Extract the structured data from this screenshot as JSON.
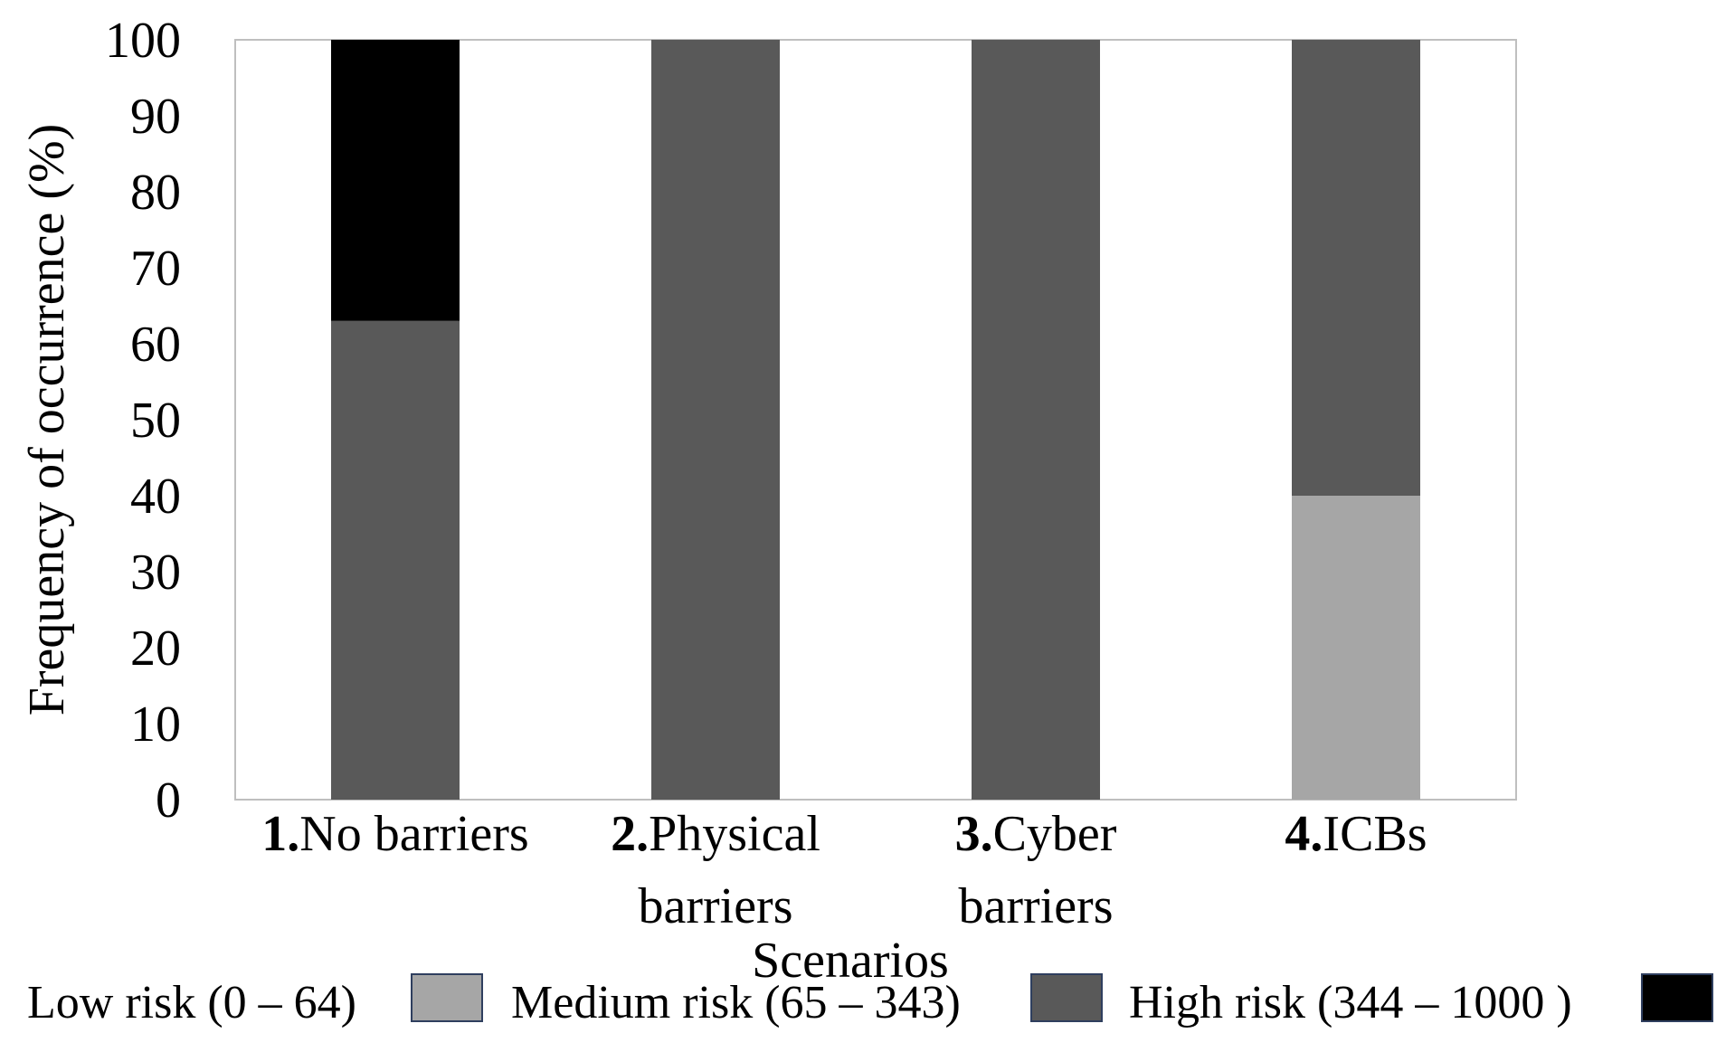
{
  "chart_data": {
    "type": "bar",
    "stacked": true,
    "title": "",
    "xlabel": "Scenarios",
    "ylabel": "Frequency of occurrence (%)",
    "ylim": [
      0,
      100
    ],
    "yticks": [
      0,
      10,
      20,
      30,
      40,
      50,
      60,
      70,
      80,
      90,
      100
    ],
    "grid": false,
    "legend_position": "bottom",
    "categories": [
      {
        "number": "1.",
        "line1": "No barriers",
        "line2": ""
      },
      {
        "number": "2.",
        "line1": "Physical",
        "line2": "barriers"
      },
      {
        "number": "3.",
        "line1": "Cyber",
        "line2": "barriers"
      },
      {
        "number": "4.",
        "line1": "ICBs",
        "line2": ""
      }
    ],
    "series": [
      {
        "name": "Low risk (0 – 64)",
        "color": "#a6a6a6",
        "values": [
          0,
          0,
          0,
          40
        ]
      },
      {
        "name": "Medium risk (65 – 343)",
        "color": "#595959",
        "values": [
          63,
          100,
          100,
          60
        ]
      },
      {
        "name": "High risk (344 – 1000 )",
        "color": "#000000",
        "values": [
          37,
          0,
          0,
          0
        ]
      }
    ]
  }
}
